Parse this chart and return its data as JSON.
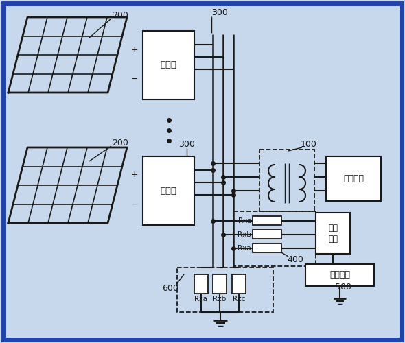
{
  "bg_color": "#c8d8ec",
  "inner_bg": "#eef2f7",
  "border_color": "#2244aa",
  "line_color": "#1a1a1a",
  "figsize": [
    5.9,
    5.0
  ],
  "dpi": 100,
  "labels": {
    "200_top": "200",
    "200_bot": "200",
    "300_top": "300",
    "300_bot": "300",
    "100": "100",
    "400": "400",
    "500": "500",
    "600": "600",
    "inverter1": "逆变器",
    "inverter2": "逆变器",
    "hv_grid": "高压电网",
    "voltage_sample_line1": "电压",
    "voltage_sample_line2": "采样",
    "control_unit": "控制单元",
    "Rxc": "Rxc",
    "Rxb": "Rxb",
    "Rxa": "Rxa",
    "Rza": "Rza",
    "Rzb": "Rzb",
    "Rzc": "Rzc",
    "plus": "+",
    "minus": "−"
  }
}
